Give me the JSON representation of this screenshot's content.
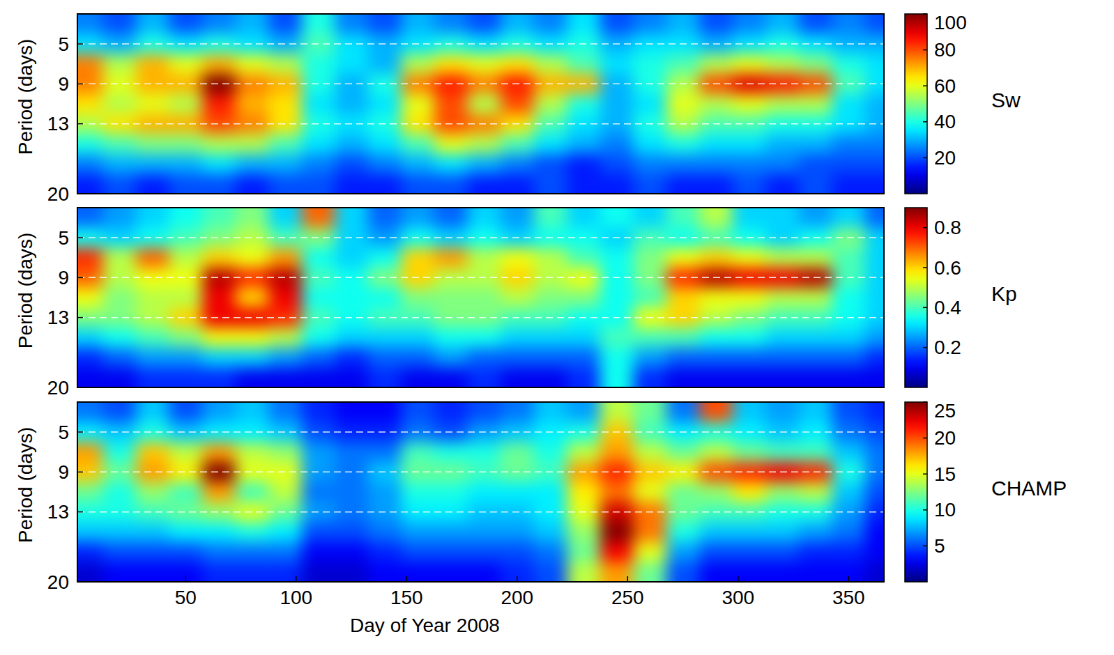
{
  "chart_data": [
    {
      "type": "heatmap",
      "title": "Sw",
      "ylabel": "Period (days)",
      "tick_labels": "y",
      "grid": true,
      "x": [
        5,
        20,
        35,
        50,
        65,
        80,
        95,
        110,
        125,
        140,
        155,
        170,
        185,
        200,
        215,
        230,
        245,
        260,
        275,
        290,
        305,
        320,
        335,
        350,
        365
      ],
      "y": [
        3,
        5,
        7,
        9,
        11,
        13,
        15,
        17,
        19
      ],
      "xlim": [
        1,
        366
      ],
      "ylim": [
        2,
        20
      ],
      "yticks": [
        5,
        9,
        13,
        20
      ],
      "colorbar": {
        "range": [
          0,
          100
        ],
        "ticks": [
          20,
          40,
          60,
          80,
          100
        ]
      },
      "values": [
        [
          25,
          20,
          30,
          20,
          25,
          30,
          20,
          40,
          25,
          20,
          30,
          25,
          20,
          30,
          25,
          35,
          20,
          25,
          30,
          20,
          25,
          30,
          20,
          25,
          20
        ],
        [
          35,
          30,
          40,
          35,
          40,
          35,
          30,
          45,
          35,
          30,
          35,
          40,
          35,
          40,
          35,
          40,
          30,
          35,
          35,
          30,
          35,
          40,
          35,
          30,
          30
        ],
        [
          75,
          55,
          70,
          60,
          70,
          60,
          55,
          40,
          35,
          30,
          55,
          65,
          60,
          65,
          55,
          45,
          35,
          40,
          45,
          55,
          60,
          55,
          50,
          40,
          35
        ],
        [
          75,
          60,
          70,
          70,
          100,
          75,
          70,
          40,
          30,
          40,
          75,
          85,
          75,
          85,
          70,
          70,
          30,
          40,
          55,
          80,
          90,
          85,
          80,
          45,
          35
        ],
        [
          65,
          55,
          60,
          55,
          85,
          70,
          65,
          35,
          30,
          35,
          60,
          80,
          55,
          80,
          55,
          40,
          30,
          35,
          60,
          55,
          60,
          55,
          55,
          35,
          30
        ],
        [
          55,
          65,
          70,
          70,
          80,
          75,
          65,
          40,
          35,
          40,
          65,
          80,
          75,
          65,
          45,
          35,
          30,
          40,
          55,
          45,
          45,
          40,
          40,
          35,
          30
        ],
        [
          40,
          45,
          50,
          50,
          55,
          55,
          45,
          35,
          30,
          35,
          45,
          60,
          55,
          45,
          35,
          30,
          25,
          35,
          40,
          35,
          35,
          30,
          30,
          25,
          25
        ],
        [
          25,
          30,
          30,
          30,
          35,
          30,
          30,
          25,
          20,
          25,
          30,
          35,
          30,
          25,
          20,
          15,
          20,
          25,
          25,
          25,
          25,
          25,
          20,
          20,
          20
        ],
        [
          15,
          20,
          15,
          20,
          20,
          15,
          20,
          20,
          15,
          15,
          20,
          20,
          15,
          15,
          20,
          15,
          15,
          20,
          15,
          15,
          20,
          15,
          20,
          15,
          15
        ]
      ]
    },
    {
      "type": "heatmap",
      "title": "Kp",
      "ylabel": "Period (days)",
      "tick_labels": "y",
      "grid": true,
      "x": [
        5,
        20,
        35,
        50,
        65,
        80,
        95,
        110,
        125,
        140,
        155,
        170,
        185,
        200,
        215,
        230,
        245,
        260,
        275,
        290,
        305,
        320,
        335,
        350,
        365
      ],
      "y": [
        3,
        5,
        7,
        9,
        11,
        13,
        15,
        17,
        19
      ],
      "xlim": [
        1,
        366
      ],
      "ylim": [
        2,
        20
      ],
      "yticks": [
        5,
        9,
        13,
        20
      ],
      "colorbar": {
        "range": [
          0,
          0.9
        ],
        "ticks": [
          0.2,
          0.4,
          0.6,
          0.8
        ]
      },
      "values": [
        [
          0.2,
          0.25,
          0.3,
          0.35,
          0.4,
          0.45,
          0.3,
          0.7,
          0.3,
          0.2,
          0.25,
          0.2,
          0.3,
          0.25,
          0.4,
          0.3,
          0.35,
          0.3,
          0.4,
          0.5,
          0.3,
          0.3,
          0.25,
          0.3,
          0.2
        ],
        [
          0.35,
          0.3,
          0.35,
          0.4,
          0.45,
          0.5,
          0.4,
          0.45,
          0.3,
          0.25,
          0.35,
          0.3,
          0.35,
          0.3,
          0.35,
          0.35,
          0.3,
          0.4,
          0.35,
          0.4,
          0.35,
          0.3,
          0.35,
          0.45,
          0.3
        ],
        [
          0.75,
          0.5,
          0.7,
          0.5,
          0.6,
          0.55,
          0.65,
          0.35,
          0.3,
          0.35,
          0.6,
          0.65,
          0.5,
          0.55,
          0.5,
          0.4,
          0.35,
          0.45,
          0.55,
          0.6,
          0.55,
          0.5,
          0.5,
          0.4,
          0.3
        ],
        [
          0.7,
          0.5,
          0.55,
          0.55,
          0.85,
          0.75,
          0.85,
          0.4,
          0.35,
          0.45,
          0.6,
          0.5,
          0.5,
          0.6,
          0.5,
          0.55,
          0.35,
          0.45,
          0.75,
          0.85,
          0.8,
          0.8,
          0.85,
          0.4,
          0.3
        ],
        [
          0.55,
          0.45,
          0.5,
          0.5,
          0.8,
          0.6,
          0.8,
          0.35,
          0.35,
          0.35,
          0.45,
          0.45,
          0.45,
          0.5,
          0.45,
          0.45,
          0.35,
          0.4,
          0.6,
          0.55,
          0.55,
          0.5,
          0.5,
          0.35,
          0.3
        ],
        [
          0.45,
          0.45,
          0.5,
          0.6,
          0.8,
          0.8,
          0.75,
          0.4,
          0.35,
          0.4,
          0.4,
          0.45,
          0.45,
          0.4,
          0.4,
          0.35,
          0.35,
          0.55,
          0.6,
          0.5,
          0.45,
          0.4,
          0.4,
          0.35,
          0.3
        ],
        [
          0.3,
          0.35,
          0.4,
          0.45,
          0.55,
          0.55,
          0.5,
          0.35,
          0.3,
          0.3,
          0.3,
          0.35,
          0.35,
          0.3,
          0.3,
          0.3,
          0.4,
          0.4,
          0.4,
          0.35,
          0.35,
          0.3,
          0.3,
          0.3,
          0.25
        ],
        [
          0.15,
          0.2,
          0.25,
          0.25,
          0.3,
          0.3,
          0.25,
          0.2,
          0.15,
          0.2,
          0.2,
          0.25,
          0.2,
          0.2,
          0.2,
          0.2,
          0.35,
          0.25,
          0.2,
          0.2,
          0.2,
          0.2,
          0.2,
          0.2,
          0.15
        ],
        [
          0.1,
          0.1,
          0.15,
          0.15,
          0.15,
          0.1,
          0.1,
          0.1,
          0.1,
          0.15,
          0.1,
          0.1,
          0.15,
          0.1,
          0.1,
          0.15,
          0.35,
          0.15,
          0.1,
          0.1,
          0.1,
          0.1,
          0.1,
          0.1,
          0.1
        ]
      ]
    },
    {
      "type": "heatmap",
      "title": "CHAMP",
      "ylabel": "Period (days)",
      "xlabel": "Day of Year 2008",
      "grid": true,
      "x": [
        5,
        20,
        35,
        50,
        65,
        80,
        95,
        110,
        125,
        140,
        155,
        170,
        185,
        200,
        215,
        230,
        245,
        260,
        275,
        290,
        305,
        320,
        335,
        350,
        365
      ],
      "y": [
        3,
        5,
        7,
        9,
        11,
        13,
        15,
        17,
        19
      ],
      "xlim": [
        1,
        366
      ],
      "ylim": [
        2,
        20
      ],
      "xticks": [
        50,
        100,
        150,
        200,
        250,
        300,
        350
      ],
      "yticks": [
        5,
        9,
        13,
        20
      ],
      "colorbar": {
        "range": [
          0,
          25
        ],
        "ticks": [
          5,
          10,
          15,
          20,
          25
        ]
      },
      "values": [
        [
          6,
          5,
          8,
          5,
          7,
          8,
          6,
          4,
          3,
          3,
          5,
          4,
          5,
          6,
          8,
          7,
          14,
          12,
          6,
          20,
          8,
          7,
          8,
          5,
          4
        ],
        [
          9,
          8,
          10,
          8,
          9,
          9,
          8,
          5,
          4,
          4,
          6,
          5,
          7,
          8,
          9,
          10,
          17,
          11,
          9,
          10,
          9,
          8,
          9,
          6,
          5
        ],
        [
          18,
          10,
          17,
          14,
          18,
          14,
          13,
          7,
          6,
          6,
          11,
          10,
          10,
          12,
          10,
          14,
          18,
          14,
          12,
          14,
          12,
          11,
          11,
          8,
          6
        ],
        [
          17,
          12,
          18,
          16,
          25,
          15,
          15,
          7,
          6,
          8,
          12,
          12,
          11,
          12,
          11,
          18,
          21,
          17,
          16,
          20,
          21,
          22,
          21,
          10,
          6
        ],
        [
          12,
          10,
          13,
          11,
          18,
          11,
          14,
          6,
          6,
          7,
          10,
          10,
          9,
          9,
          9,
          16,
          19,
          15,
          12,
          13,
          16,
          13,
          14,
          8,
          5
        ],
        [
          10,
          10,
          11,
          12,
          13,
          15,
          12,
          7,
          6,
          7,
          9,
          9,
          8,
          8,
          9,
          15,
          23,
          19,
          12,
          11,
          11,
          10,
          10,
          7,
          4
        ],
        [
          8,
          8,
          8,
          9,
          9,
          10,
          9,
          5,
          5,
          6,
          7,
          7,
          7,
          7,
          8,
          13,
          25,
          19,
          10,
          8,
          8,
          8,
          7,
          6,
          3
        ],
        [
          4,
          5,
          5,
          5,
          6,
          6,
          6,
          3,
          3,
          4,
          5,
          5,
          5,
          5,
          6,
          12,
          22,
          15,
          7,
          5,
          5,
          5,
          4,
          4,
          3
        ],
        [
          2,
          3,
          3,
          3,
          4,
          4,
          4,
          2,
          2,
          3,
          3,
          3,
          3,
          4,
          5,
          14,
          18,
          12,
          5,
          3,
          3,
          3,
          3,
          3,
          2
        ]
      ]
    }
  ]
}
